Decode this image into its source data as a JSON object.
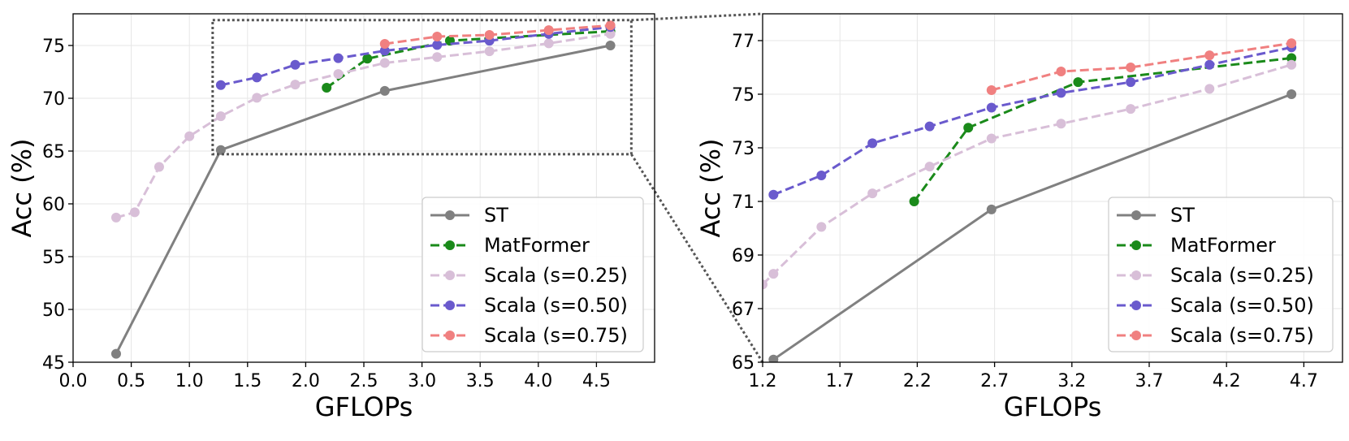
{
  "chart_data": [
    {
      "type": "line",
      "xlabel": "GFLOPs",
      "ylabel": "Acc (%)",
      "xlim": [
        0,
        5.0
      ],
      "ylim": [
        45,
        78
      ],
      "xticks": [
        0.0,
        0.5,
        1.0,
        1.5,
        2.0,
        2.5,
        3.0,
        3.5,
        4.0,
        4.5
      ],
      "xtick_labels": [
        "0.0",
        "0.5",
        "1.0",
        "1.5",
        "2.0",
        "2.5",
        "3.0",
        "3.5",
        "4.0",
        "4.5"
      ],
      "yticks": [
        45,
        50,
        55,
        60,
        65,
        70,
        75
      ],
      "ytick_labels": [
        "45",
        "50",
        "55",
        "60",
        "65",
        "70",
        "75"
      ],
      "grid": true,
      "legend_position": "lower-right",
      "zoom_box": {
        "x": [
          1.2,
          4.8
        ],
        "y": [
          64.7,
          77.4
        ]
      },
      "series": [
        {
          "name": "ST",
          "color": "#808080",
          "style": "solid",
          "x": [
            0.37,
            1.27,
            2.68,
            4.62
          ],
          "y": [
            45.8,
            65.1,
            70.7,
            75.0
          ]
        },
        {
          "name": "MatFormer",
          "color": "#1a8a1a",
          "style": "dashed",
          "x": [
            2.18,
            2.53,
            3.24,
            4.62
          ],
          "y": [
            71.0,
            73.75,
            75.45,
            76.35
          ]
        },
        {
          "name": "Scala (s=0.25)",
          "color": "#d8bfd8",
          "style": "dashed",
          "x": [
            0.37,
            0.53,
            0.74,
            1.0,
            1.27,
            1.58,
            1.91,
            2.28,
            2.68,
            3.13,
            3.58,
            4.09,
            4.62
          ],
          "y": [
            58.7,
            59.2,
            63.5,
            66.4,
            68.3,
            70.05,
            71.3,
            72.3,
            73.35,
            73.9,
            74.45,
            75.2,
            76.1
          ]
        },
        {
          "name": "Scala (s=0.50)",
          "color": "#6a5acd",
          "style": "dashed",
          "x": [
            1.27,
            1.58,
            1.91,
            2.28,
            2.68,
            3.13,
            3.58,
            4.09,
            4.62
          ],
          "y": [
            71.25,
            71.97,
            73.17,
            73.8,
            74.5,
            75.05,
            75.45,
            76.1,
            76.75
          ]
        },
        {
          "name": "Scala (s=0.75)",
          "color": "#f08080",
          "style": "dashed",
          "x": [
            2.68,
            3.13,
            3.58,
            4.09,
            4.62
          ],
          "y": [
            75.15,
            75.85,
            76.0,
            76.45,
            76.9
          ]
        }
      ]
    },
    {
      "type": "line",
      "xlabel": "GFLOPs",
      "ylabel": "Acc (%)",
      "xlim": [
        1.2,
        4.95
      ],
      "ylim": [
        65,
        78
      ],
      "xticks": [
        1.2,
        1.7,
        2.2,
        2.7,
        3.2,
        3.7,
        4.2,
        4.7
      ],
      "xtick_labels": [
        "1.2",
        "1.7",
        "2.2",
        "2.7",
        "3.2",
        "3.7",
        "4.2",
        "4.7"
      ],
      "yticks": [
        65,
        67,
        69,
        71,
        73,
        75,
        77
      ],
      "ytick_labels": [
        "65",
        "67",
        "69",
        "71",
        "73",
        "75",
        "77"
      ],
      "grid": true,
      "legend_position": "lower-right",
      "series": [
        {
          "name": "ST",
          "color": "#808080",
          "style": "solid",
          "x": [
            1.27,
            2.68,
            4.62
          ],
          "y": [
            65.1,
            70.7,
            75.0
          ]
        },
        {
          "name": "MatFormer",
          "color": "#1a8a1a",
          "style": "dashed",
          "x": [
            2.18,
            2.53,
            3.24,
            4.62
          ],
          "y": [
            71.0,
            73.75,
            75.45,
            76.35
          ]
        },
        {
          "name": "Scala (s=0.25)",
          "color": "#d8bfd8",
          "style": "dashed",
          "x": [
            1.2,
            1.27,
            1.58,
            1.91,
            2.28,
            2.68,
            3.13,
            3.58,
            4.09,
            4.62
          ],
          "y": [
            67.9,
            68.3,
            70.05,
            71.3,
            72.3,
            73.35,
            73.9,
            74.45,
            75.2,
            76.1
          ]
        },
        {
          "name": "Scala (s=0.50)",
          "color": "#6a5acd",
          "style": "dashed",
          "x": [
            1.27,
            1.58,
            1.91,
            2.28,
            2.68,
            3.13,
            3.58,
            4.09,
            4.62
          ],
          "y": [
            71.25,
            71.97,
            73.17,
            73.8,
            74.5,
            75.05,
            75.45,
            76.1,
            76.75
          ]
        },
        {
          "name": "Scala (s=0.75)",
          "color": "#f08080",
          "style": "dashed",
          "x": [
            2.68,
            3.13,
            3.58,
            4.09,
            4.62
          ],
          "y": [
            75.15,
            75.85,
            76.0,
            76.45,
            76.9
          ]
        }
      ]
    }
  ]
}
